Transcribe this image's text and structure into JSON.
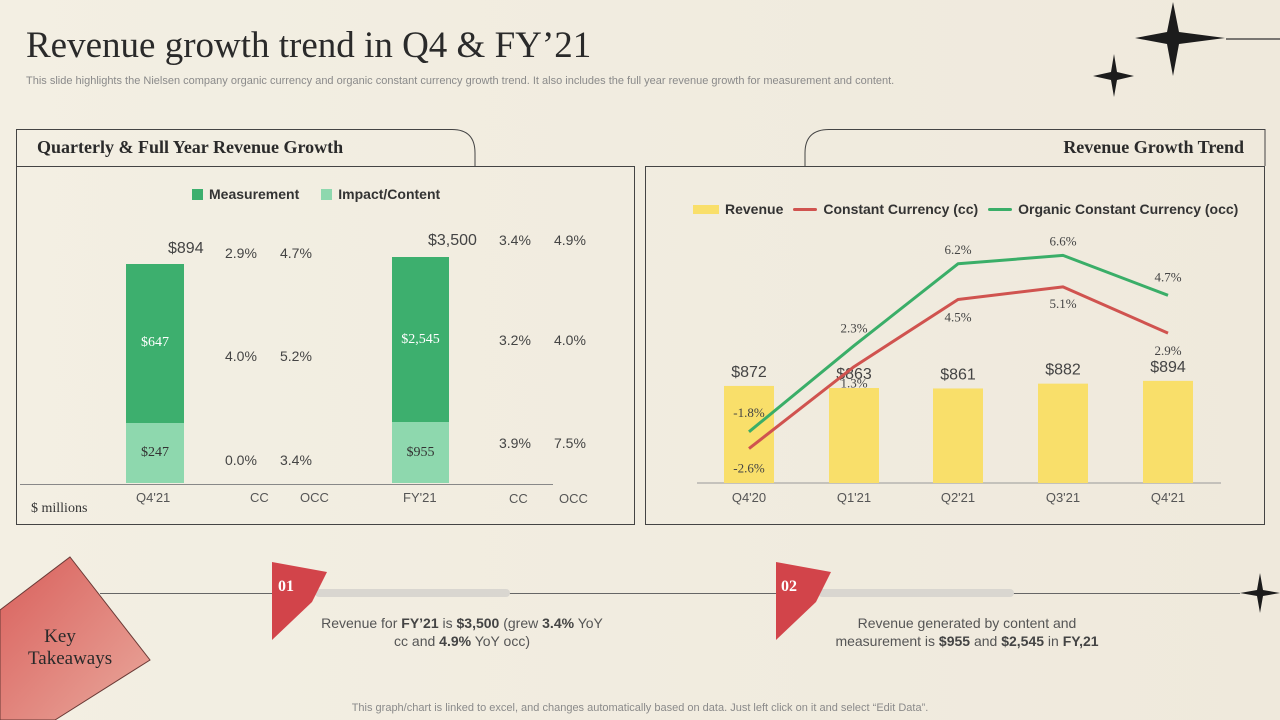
{
  "header": {
    "title": "Revenue growth trend in Q4 & FY’21",
    "subtitle": "This slide highlights the Nielsen company organic currency and organic constant currency growth trend. It also includes the full year revenue growth for measurement and content."
  },
  "left_panel": {
    "title": "Quarterly & Full Year Revenue Growth",
    "units": "$ millions",
    "legend": [
      {
        "label": "Measurement",
        "color": "#3daf6e"
      },
      {
        "label": "Impact/Content",
        "color": "#8ed8ae"
      }
    ],
    "col_headers": [
      "CC",
      "OCC",
      "CC",
      "OCC"
    ],
    "groups": [
      {
        "label": "Q4'21",
        "total": "$894",
        "measurement": 647,
        "measurement_label": "$647",
        "content": 247,
        "content_label": "$247",
        "rows": [
          [
            "2.9%",
            "4.7%"
          ],
          [
            "4.0%",
            "5.2%"
          ],
          [
            "0.0%",
            "3.4%"
          ]
        ]
      },
      {
        "label": "FY'21",
        "total": "$3,500",
        "measurement": 2545,
        "measurement_label": "$2,545",
        "content": 955,
        "content_label": "$955",
        "rows": [
          [
            "3.4%",
            "4.9%"
          ],
          [
            "3.2%",
            "4.0%"
          ],
          [
            "3.9%",
            "7.5%"
          ]
        ]
      }
    ]
  },
  "right_panel": {
    "title": "Revenue Growth Trend"
  },
  "chart_data": {
    "type": "bar",
    "categories": [
      "Q4'20",
      "Q1'21",
      "Q2'21",
      "Q3'21",
      "Q4'21"
    ],
    "series": [
      {
        "name": "Revenue",
        "kind": "bar",
        "color": "#f9df6a",
        "values": [
          872,
          863,
          861,
          882,
          894
        ],
        "labels": [
          "$872",
          "$863",
          "$861",
          "$882",
          "$894"
        ]
      },
      {
        "name": "Constant Currency (cc)",
        "kind": "line",
        "color": "#d0534f",
        "values": [
          -2.6,
          1.3,
          4.5,
          5.1,
          2.9
        ],
        "labels": [
          "-2.6%",
          "1.3%",
          "4.5%",
          "5.1%",
          "2.9%"
        ]
      },
      {
        "name": "Organic Constant Currency (occ)",
        "kind": "line",
        "color": "#3aae68",
        "values": [
          -1.8,
          2.3,
          6.2,
          6.6,
          4.7
        ],
        "labels": [
          "-1.8%",
          "2.3%",
          "6.2%",
          "6.6%",
          "4.7%"
        ]
      }
    ],
    "legend_position": "top"
  },
  "takeaways": {
    "badge": "Key Takeaways",
    "items": [
      {
        "num": "01",
        "pre": "Revenue for ",
        "b1": "FY’21",
        "mid1": " is ",
        "b2": "$3,500",
        "mid2": " (grew ",
        "b3": "3.4%",
        "mid3": " YoY cc and ",
        "b4": "4.9%",
        "post": " YoY occ)"
      },
      {
        "num": "02",
        "pre": "Revenue generated by content and measurement is ",
        "b1": "$955",
        "mid1": " and ",
        "b2": "$2,545",
        "mid2": " in ",
        "b3": "FY,21"
      }
    ]
  },
  "footer": "This graph/chart is linked to excel,  and changes automatically based on data. Just left click on it and select “Edit Data”."
}
